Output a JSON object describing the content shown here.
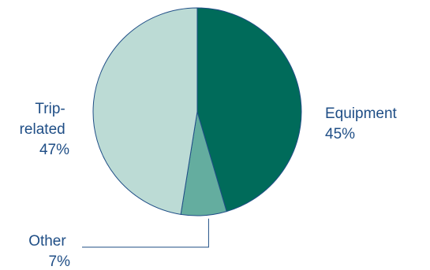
{
  "chart_data": {
    "type": "pie",
    "slices": [
      {
        "label": "Equipment",
        "value": 45,
        "value_label": "45%",
        "color": "#006b5a"
      },
      {
        "label": "Other",
        "value": 7,
        "value_label": "7%",
        "color": "#64ad9f"
      },
      {
        "label": "Trip-related",
        "value": 47,
        "value_label": "47%",
        "color": "#bcdbd5",
        "label_lines": [
          "Trip-",
          "related"
        ]
      }
    ],
    "start_angle": "12 o'clock",
    "direction": "clockwise",
    "legend": "none",
    "colors": {
      "outline": "#1f4e86",
      "label_text": "#1f4e86",
      "leader_line": "#1f4e86"
    }
  }
}
